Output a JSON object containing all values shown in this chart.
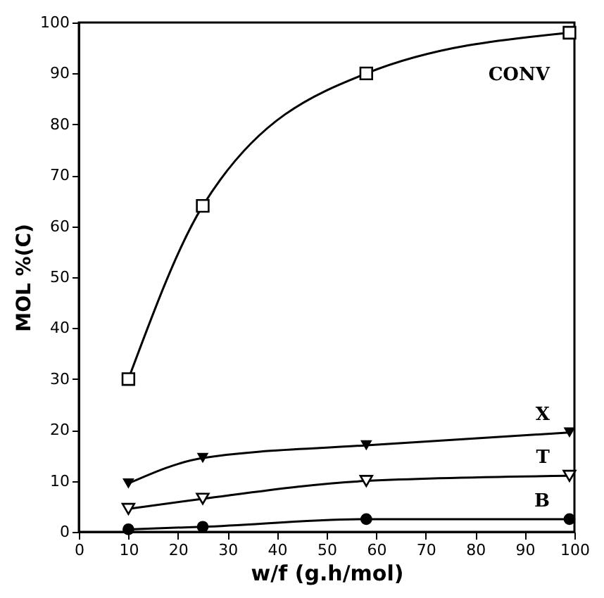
{
  "chart_data": {
    "type": "line",
    "xlabel": "w/f (g.h/mol)",
    "ylabel": "MOL %(C)",
    "x": [
      10,
      25,
      58,
      99
    ],
    "series": [
      {
        "name": "CONV",
        "color": "#000000",
        "marker": "square",
        "values": [
          30,
          64,
          90,
          98
        ]
      },
      {
        "name": "X",
        "color": "#000000",
        "marker": "triangle",
        "values": [
          9.5,
          14.5,
          17,
          19.5
        ]
      },
      {
        "name": "T",
        "color": "#000000",
        "marker": "triangle",
        "values": [
          4.5,
          6.5,
          10,
          11
        ]
      },
      {
        "name": "B",
        "color": "#000000",
        "marker": "circle",
        "values": [
          0.5,
          1,
          2.5,
          2.5
        ]
      }
    ],
    "xlim": [
      0,
      100
    ],
    "xticks": [
      0,
      10,
      20,
      30,
      40,
      50,
      60,
      70,
      80,
      90,
      100
    ],
    "ylim": [
      0,
      100
    ],
    "yticks": [
      0,
      10,
      20,
      30,
      40,
      50,
      60,
      70,
      80,
      90,
      100
    ],
    "line_style": "solid"
  }
}
